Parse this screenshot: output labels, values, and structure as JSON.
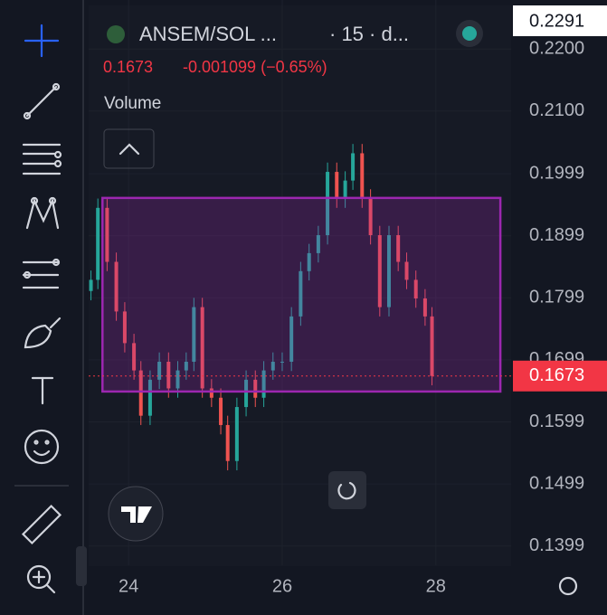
{
  "header": {
    "title": "ANSEM/SOL ...",
    "interval": "· 15 · d...",
    "price": "0.1673",
    "change": "-0.001099 (−0.65%)",
    "study": "Volume",
    "top_badge": "0.2291"
  },
  "chart_data": {
    "type": "candlestick",
    "x": [
      23.51,
      23.6,
      23.72,
      23.84,
      23.95,
      24.07,
      24.16,
      24.28,
      24.4,
      24.52,
      24.64,
      24.75,
      24.85,
      24.96,
      25.08,
      25.2,
      25.29,
      25.41,
      25.53,
      25.65,
      25.76,
      25.88,
      26.0,
      26.12,
      26.24,
      26.35,
      26.47,
      26.59,
      26.71,
      26.82,
      26.92,
      27.04,
      27.15,
      27.27,
      27.39,
      27.51,
      27.62,
      27.74,
      27.86,
      27.95
    ],
    "open": [
      0.181,
      0.1828,
      0.1944,
      0.1857,
      0.1777,
      0.1726,
      0.1682,
      0.1609,
      0.1667,
      0.1696,
      0.1653,
      0.1682,
      0.1696,
      0.1784,
      0.1653,
      0.1638,
      0.1594,
      0.1536,
      0.1623,
      0.1667,
      0.1638,
      0.1682,
      0.1696,
      0.1696,
      0.1769,
      0.1842,
      0.1871,
      0.19,
      0.2002,
      0.1959,
      0.1988,
      0.2032,
      0.1959,
      0.19,
      0.1784,
      0.19,
      0.1857,
      0.1828,
      0.1798,
      0.1769
    ],
    "high": [
      0.1843,
      0.1959,
      0.1959,
      0.1872,
      0.1792,
      0.1741,
      0.1697,
      0.1682,
      0.1711,
      0.1711,
      0.1697,
      0.1711,
      0.1799,
      0.1799,
      0.1668,
      0.1653,
      0.1609,
      0.1638,
      0.1682,
      0.1682,
      0.1697,
      0.1711,
      0.1711,
      0.1784,
      0.1857,
      0.1886,
      0.1915,
      0.2017,
      0.2017,
      0.2003,
      0.2047,
      0.2047,
      0.1974,
      0.1915,
      0.1915,
      0.1915,
      0.1872,
      0.1843,
      0.1813,
      0.1784
    ],
    "low": [
      0.1795,
      0.1813,
      0.1842,
      0.1762,
      0.1711,
      0.1667,
      0.1594,
      0.1594,
      0.1652,
      0.1638,
      0.1638,
      0.1667,
      0.1681,
      0.1638,
      0.1623,
      0.1579,
      0.1521,
      0.1521,
      0.1608,
      0.1623,
      0.1623,
      0.1667,
      0.1681,
      0.1681,
      0.1754,
      0.1827,
      0.1856,
      0.1885,
      0.1944,
      0.1944,
      0.1973,
      0.1944,
      0.1885,
      0.1769,
      0.1769,
      0.1842,
      0.1813,
      0.1783,
      0.1754,
      0.1658
    ],
    "close": [
      0.1828,
      0.1944,
      0.1857,
      0.1777,
      0.1726,
      0.1682,
      0.1609,
      0.1667,
      0.1696,
      0.1653,
      0.1682,
      0.1696,
      0.1784,
      0.1653,
      0.1638,
      0.1594,
      0.1536,
      0.1623,
      0.1667,
      0.1638,
      0.1682,
      0.1696,
      0.1696,
      0.1769,
      0.1842,
      0.1871,
      0.19,
      0.2002,
      0.1959,
      0.1988,
      0.2032,
      0.1959,
      0.19,
      0.1784,
      0.19,
      0.1857,
      0.1828,
      0.1798,
      0.1769,
      0.1673
    ],
    "up_color": "#26a69a",
    "down_color": "#ef5350",
    "xlim": [
      23.48,
      28.98
    ],
    "xticks": [
      24,
      26,
      28
    ],
    "ylim": [
      0.1368,
      0.2279
    ],
    "yticks": [
      0.1399,
      0.1499,
      0.1599,
      0.1699,
      0.1799,
      0.1899,
      0.1999,
      {
        "value": 0.21,
        "label": "0.2100"
      },
      {
        "value": 0.22,
        "label": "0.2200"
      }
    ],
    "last_price": 0.1673,
    "last_price_color": "#f23645",
    "range_box": {
      "x": [
        23.66,
        28.84
      ],
      "y": [
        0.1648,
        0.196
      ],
      "color": "#9c27b0"
    }
  }
}
